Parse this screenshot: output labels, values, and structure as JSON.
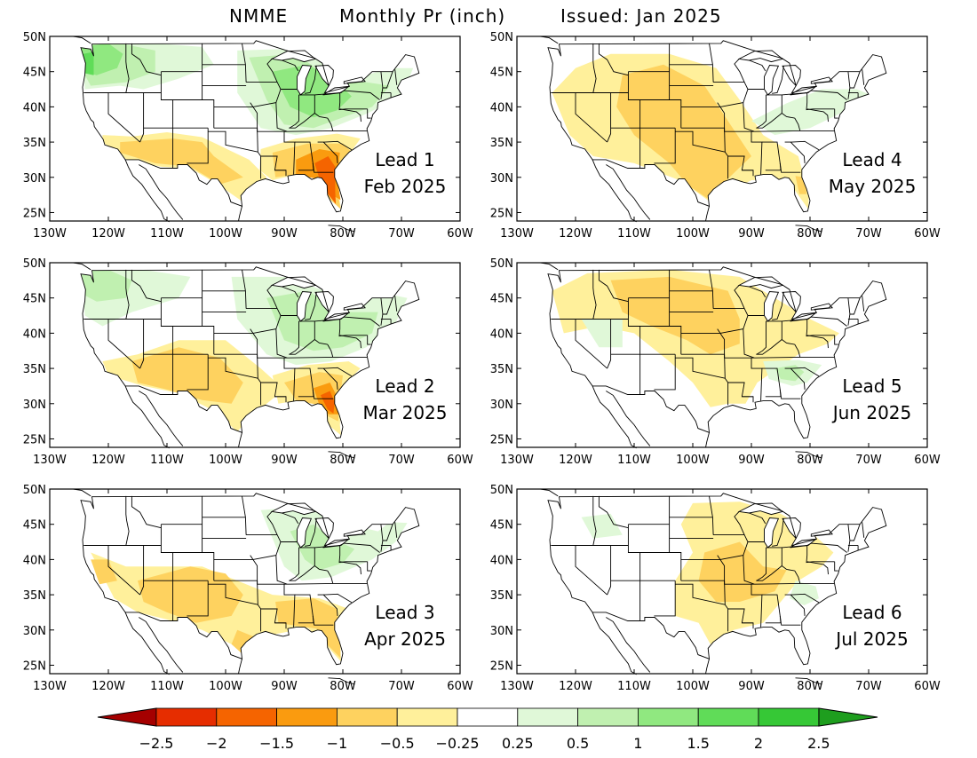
{
  "header": {
    "model": "NMME",
    "variable": "Monthly Pr (inch)",
    "issued": "Issued: Jan 2025"
  },
  "axes": {
    "lon_ticks": [
      "130W",
      "120W",
      "110W",
      "100W",
      "90W",
      "80W",
      "70W",
      "60W"
    ],
    "lat_ticks": [
      "50N",
      "45N",
      "40N",
      "35N",
      "30N",
      "25N"
    ]
  },
  "panels": [
    {
      "lead": "Lead 1",
      "month": "Feb 2025"
    },
    {
      "lead": "Lead 2",
      "month": "Mar 2025"
    },
    {
      "lead": "Lead 3",
      "month": "Apr 2025"
    },
    {
      "lead": "Lead 4",
      "month": "May 2025"
    },
    {
      "lead": "Lead 5",
      "month": "Jun 2025"
    },
    {
      "lead": "Lead 6",
      "month": "Jul 2025"
    }
  ],
  "colorbar": {
    "labels": [
      "-2.5",
      "-2",
      "-1.5",
      "-1",
      "-0.5",
      "-0.25",
      "0.25",
      "0.5",
      "1",
      "1.5",
      "2",
      "2.5"
    ],
    "low_arrow_color": "#a50000",
    "high_arrow_color": "#1e9e1e",
    "colors": [
      "#e62d00",
      "#f56400",
      "#fa9b0f",
      "#fed25f",
      "#fff09b",
      "#ffffff",
      "#e0f8d8",
      "#c0f0b0",
      "#90e880",
      "#60dc58",
      "#36c836"
    ]
  },
  "colors": {
    "dry_light": "#fff09b",
    "dry_moderate": "#fed25f",
    "dry_strong": "#fa9b0f",
    "dry_very_strong": "#f56400",
    "wet_light": "#e0f8d8",
    "wet_moderate": "#c0f0b0",
    "wet_strong": "#90e880",
    "wet_very_strong": "#60dc58"
  }
}
